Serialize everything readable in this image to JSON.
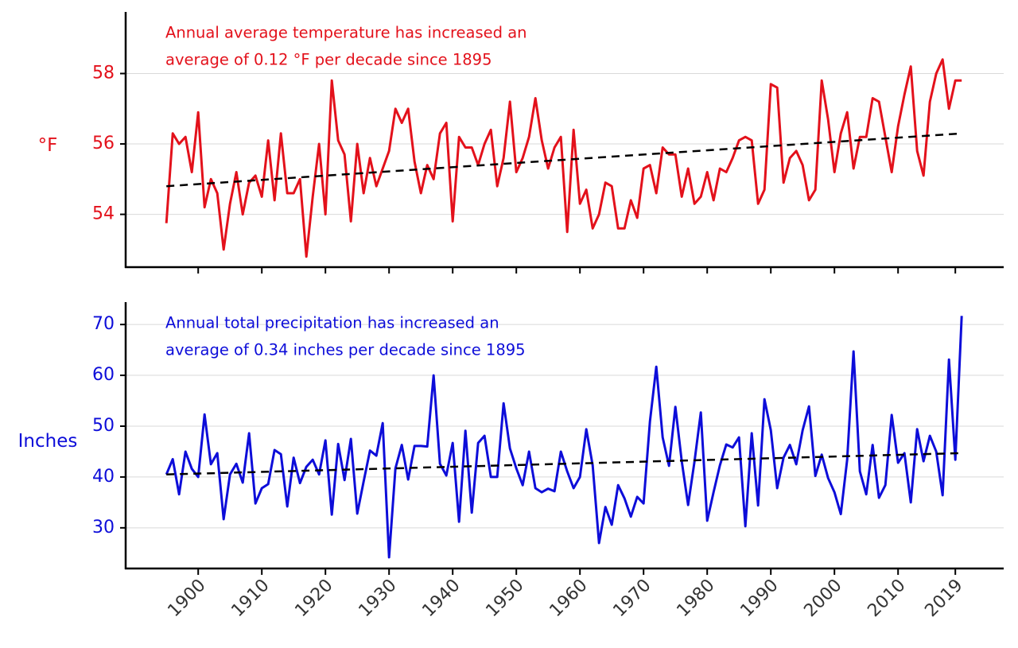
{
  "chart_data": [
    {
      "type": "line",
      "ylabel": "°F",
      "annotation": [
        "Annual average temperature has increased an",
        "average of 0.12 °F per decade since 1895"
      ],
      "color": "#e3111b",
      "x": [
        1895,
        1896,
        1897,
        1898,
        1899,
        1900,
        1901,
        1902,
        1903,
        1904,
        1905,
        1906,
        1907,
        1908,
        1909,
        1910,
        1911,
        1912,
        1913,
        1914,
        1915,
        1916,
        1917,
        1918,
        1919,
        1920,
        1921,
        1922,
        1923,
        1924,
        1925,
        1926,
        1927,
        1928,
        1929,
        1930,
        1931,
        1932,
        1933,
        1934,
        1935,
        1936,
        1937,
        1938,
        1939,
        1940,
        1941,
        1942,
        1943,
        1944,
        1945,
        1946,
        1947,
        1948,
        1949,
        1950,
        1951,
        1952,
        1953,
        1954,
        1955,
        1956,
        1957,
        1958,
        1959,
        1960,
        1961,
        1962,
        1963,
        1964,
        1965,
        1966,
        1967,
        1968,
        1969,
        1970,
        1971,
        1972,
        1973,
        1974,
        1975,
        1976,
        1977,
        1978,
        1979,
        1980,
        1981,
        1982,
        1983,
        1984,
        1985,
        1986,
        1987,
        1988,
        1989,
        1990,
        1991,
        1992,
        1993,
        1994,
        1995,
        1996,
        1997,
        1998,
        1999,
        2000,
        2001,
        2002,
        2003,
        2004,
        2005,
        2006,
        2007,
        2008,
        2009,
        2010,
        2011,
        2012,
        2013,
        2014,
        2015,
        2016,
        2017,
        2018,
        2019,
        2020
      ],
      "values": [
        53.75,
        56.3,
        56.0,
        56.2,
        55.2,
        56.9,
        54.2,
        55.0,
        54.6,
        53.0,
        54.3,
        55.2,
        54.0,
        54.9,
        55.1,
        54.5,
        56.1,
        54.4,
        56.3,
        54.6,
        54.6,
        55.0,
        52.8,
        54.5,
        56.0,
        54.0,
        57.8,
        56.1,
        55.7,
        53.8,
        56.0,
        54.6,
        55.6,
        54.8,
        55.3,
        55.8,
        57.0,
        56.6,
        57.0,
        55.5,
        54.6,
        55.4,
        55.0,
        56.3,
        56.6,
        53.8,
        56.2,
        55.9,
        55.9,
        55.4,
        56.0,
        56.4,
        54.8,
        55.6,
        57.2,
        55.2,
        55.6,
        56.2,
        57.3,
        56.1,
        55.3,
        55.9,
        56.2,
        53.5,
        56.4,
        54.3,
        54.7,
        53.6,
        54.0,
        54.9,
        54.8,
        53.6,
        53.6,
        54.4,
        53.9,
        55.3,
        55.4,
        54.6,
        55.9,
        55.7,
        55.7,
        54.5,
        55.3,
        54.3,
        54.5,
        55.2,
        54.4,
        55.3,
        55.2,
        55.6,
        56.1,
        56.2,
        56.1,
        54.3,
        54.7,
        57.7,
        57.6,
        54.9,
        55.6,
        55.8,
        55.4,
        54.4,
        54.7,
        57.8,
        56.7,
        55.2,
        56.3,
        56.9,
        55.3,
        56.2,
        56.2,
        57.3,
        57.2,
        56.2,
        55.2,
        56.5,
        57.4,
        58.2,
        55.8,
        55.1,
        57.2,
        58.0,
        58.4,
        57.0,
        57.8,
        57.8
      ],
      "trend": {
        "x": [
          1895,
          2020
        ],
        "values": [
          54.8,
          56.3
        ],
        "color": "#000000"
      },
      "xlim": [
        1888.6,
        2026.6
      ],
      "xticks": [
        1900,
        1910,
        1920,
        1930,
        1940,
        1950,
        1960,
        1970,
        1980,
        1990,
        2000,
        2010,
        2019
      ],
      "ylim": [
        52.5,
        59.75
      ],
      "yticks": [
        54,
        56,
        58
      ],
      "grid": true
    },
    {
      "type": "line",
      "ylabel": "Inches",
      "annotation": [
        "Annual total precipitation has increased an",
        "average of 0.34 inches per decade since 1895"
      ],
      "color": "#0d0dd9",
      "x": [
        1895,
        1896,
        1897,
        1898,
        1899,
        1900,
        1901,
        1902,
        1903,
        1904,
        1905,
        1906,
        1907,
        1908,
        1909,
        1910,
        1911,
        1912,
        1913,
        1914,
        1915,
        1916,
        1917,
        1918,
        1919,
        1920,
        1921,
        1922,
        1923,
        1924,
        1925,
        1926,
        1927,
        1928,
        1929,
        1930,
        1931,
        1932,
        1933,
        1934,
        1935,
        1936,
        1937,
        1938,
        1939,
        1940,
        1941,
        1942,
        1943,
        1944,
        1945,
        1946,
        1947,
        1948,
        1949,
        1950,
        1951,
        1952,
        1953,
        1954,
        1955,
        1956,
        1957,
        1958,
        1959,
        1960,
        1961,
        1962,
        1963,
        1964,
        1965,
        1966,
        1967,
        1968,
        1969,
        1970,
        1971,
        1972,
        1973,
        1974,
        1975,
        1976,
        1977,
        1978,
        1979,
        1980,
        1981,
        1982,
        1983,
        1984,
        1985,
        1986,
        1987,
        1988,
        1989,
        1990,
        1991,
        1992,
        1993,
        1994,
        1995,
        1996,
        1997,
        1998,
        1999,
        2000,
        2001,
        2002,
        2003,
        2004,
        2005,
        2006,
        2007,
        2008,
        2009,
        2010,
        2011,
        2012,
        2013,
        2014,
        2015,
        2016,
        2017,
        2018,
        2019,
        2020
      ],
      "values": [
        40.5,
        43.5,
        36.6,
        45.0,
        41.6,
        40.0,
        52.3,
        42.5,
        44.7,
        31.7,
        40.5,
        42.6,
        38.9,
        48.6,
        34.8,
        37.8,
        38.6,
        45.3,
        44.5,
        34.2,
        43.8,
        38.8,
        42.0,
        43.4,
        40.5,
        47.2,
        32.6,
        46.5,
        39.4,
        47.5,
        32.8,
        39.1,
        45.2,
        44.2,
        50.6,
        24.2,
        41.7,
        46.3,
        39.5,
        46.1,
        46.1,
        46.0,
        60.0,
        42.6,
        40.3,
        46.7,
        31.2,
        49.1,
        33.0,
        46.7,
        48.1,
        40.0,
        40.0,
        54.5,
        45.6,
        41.7,
        38.4,
        45.0,
        37.8,
        37.0,
        37.7,
        37.2,
        45.0,
        41.1,
        37.8,
        40.0,
        49.4,
        42.3,
        27.0,
        34.1,
        30.6,
        38.4,
        35.8,
        32.2,
        36.1,
        34.8,
        50.9,
        61.7,
        47.8,
        42.2,
        53.8,
        43.1,
        34.5,
        43.0,
        52.7,
        31.4,
        37.0,
        42.3,
        46.4,
        45.8,
        47.8,
        30.3,
        48.6,
        34.4,
        55.3,
        49.2,
        37.8,
        43.8,
        46.3,
        42.5,
        49.2,
        53.9,
        40.2,
        44.4,
        39.8,
        37.0,
        32.7,
        43.4,
        64.7,
        41.1,
        36.6,
        46.3,
        35.9,
        38.4,
        52.2,
        42.8,
        44.7,
        35.0,
        49.4,
        43.1,
        48.1,
        45.0,
        36.4,
        63.1,
        43.4,
        71.7
      ],
      "trend": {
        "x": [
          1895,
          2020
        ],
        "values": [
          40.5,
          44.7
        ],
        "color": "#000000"
      },
      "xlim": [
        1888.6,
        2026.6
      ],
      "xticks": [
        1900,
        1910,
        1920,
        1930,
        1940,
        1950,
        1960,
        1970,
        1980,
        1990,
        2000,
        2010,
        2019
      ],
      "ylim": [
        22,
        74.4
      ],
      "yticks": [
        30,
        40,
        50,
        60,
        70
      ],
      "grid": true
    }
  ]
}
